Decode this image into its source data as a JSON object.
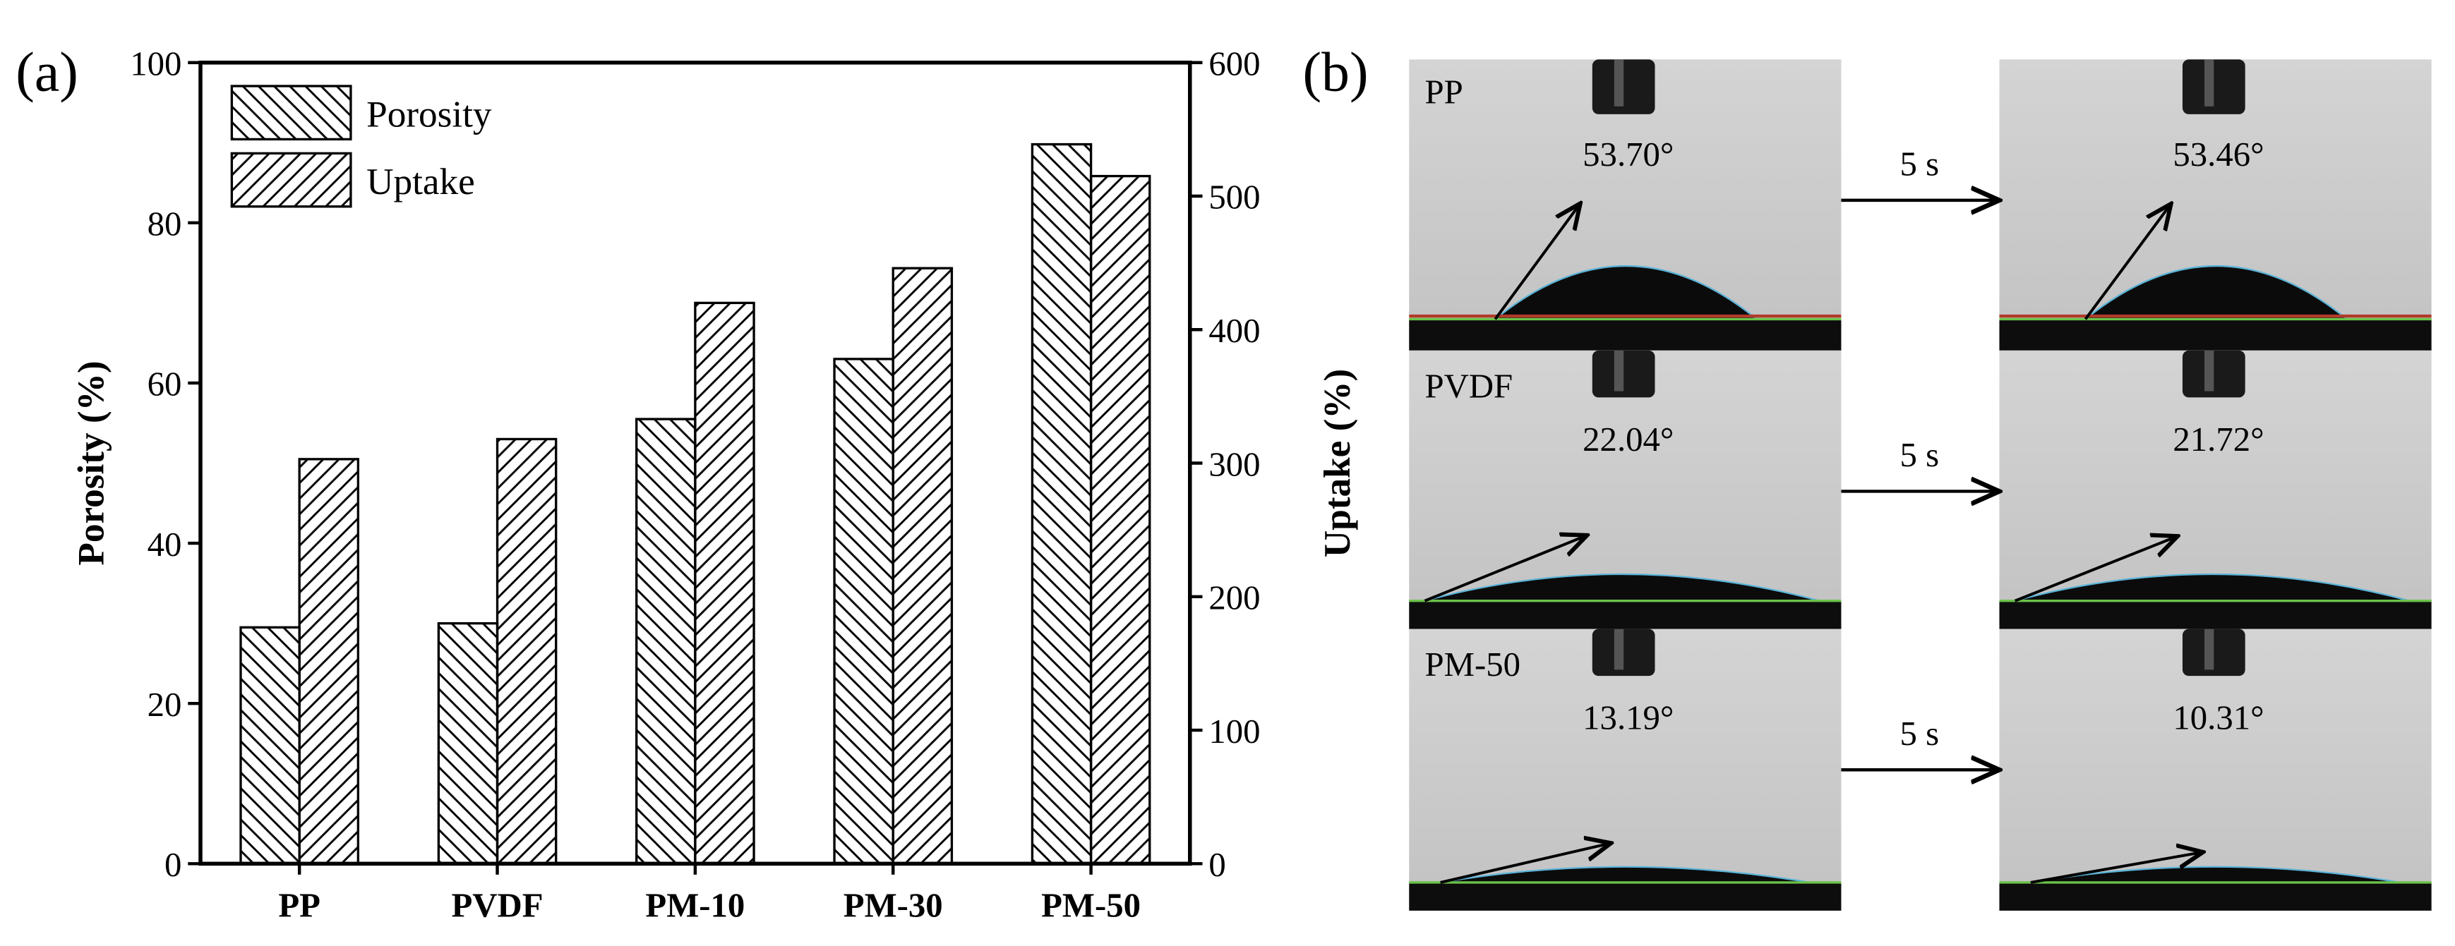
{
  "panel_labels": [
    "(a)",
    "(b)"
  ],
  "chart_data": {
    "type": "bar",
    "categories": [
      "PP",
      "PVDF",
      "PM-10",
      "PM-30",
      "PM-50"
    ],
    "y_label": "Porosity (%)",
    "y2_label": "Uptake (%)",
    "ylim": [
      0,
      100
    ],
    "yticks": [
      0,
      20,
      40,
      60,
      80,
      100
    ],
    "y2lim": [
      0,
      600
    ],
    "y2ticks": [
      0,
      100,
      200,
      300,
      400,
      500,
      600
    ],
    "legend": "upper left",
    "series": [
      {
        "name": "Porosity",
        "color": "#000000",
        "hatch": "backslash",
        "values": [
          29.5,
          30,
          55.5,
          63,
          89.8
        ]
      },
      {
        "name": "Uptake",
        "color": "#000000",
        "hatch": "slash",
        "axis": "y2",
        "values": [
          303,
          318,
          420,
          446,
          515
        ]
      }
    ]
  },
  "contact_angle": {
    "rows": [
      {
        "sample": "PP",
        "initial": "53.70°",
        "after": "53.46°",
        "interval": "5 s"
      },
      {
        "sample": "PVDF",
        "initial": "22.04°",
        "after": "21.72°",
        "interval": "5 s"
      },
      {
        "sample": "PM-50",
        "initial": "13.19°",
        "after": "10.31°",
        "interval": "5 s"
      }
    ]
  }
}
